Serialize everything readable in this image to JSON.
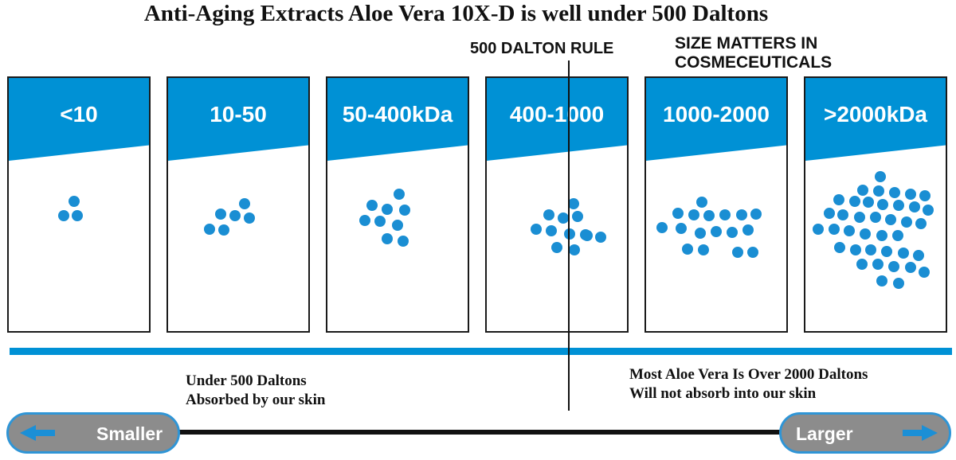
{
  "title": "Anti-Aging Extracts Aloe Vera 10X-D is well under 500 Daltons",
  "rule_label": "500 DALTON RULE",
  "size_matters": [
    "SIZE MATTERS IN",
    "COSMECEUTICALS"
  ],
  "colors": {
    "accent": "#0091d5",
    "dot": "#1a8ed3",
    "pill": "#8c8c8c",
    "pill_border": "#2f95d6"
  },
  "panels": [
    {
      "label": "<10"
    },
    {
      "label": "10-50"
    },
    {
      "label": "50-400kDa"
    },
    {
      "label": "400-1000"
    },
    {
      "label": "1000-2000"
    },
    {
      "label": ">2000kDa"
    }
  ],
  "left_note": [
    "Under 500 Daltons",
    "Absorbed by our skin"
  ],
  "right_note": [
    "Most Aloe Vera Is Over 2000 Daltons",
    "Will not absorb into our skin"
  ],
  "scale": {
    "smaller": "Smaller",
    "larger": "Larger"
  }
}
